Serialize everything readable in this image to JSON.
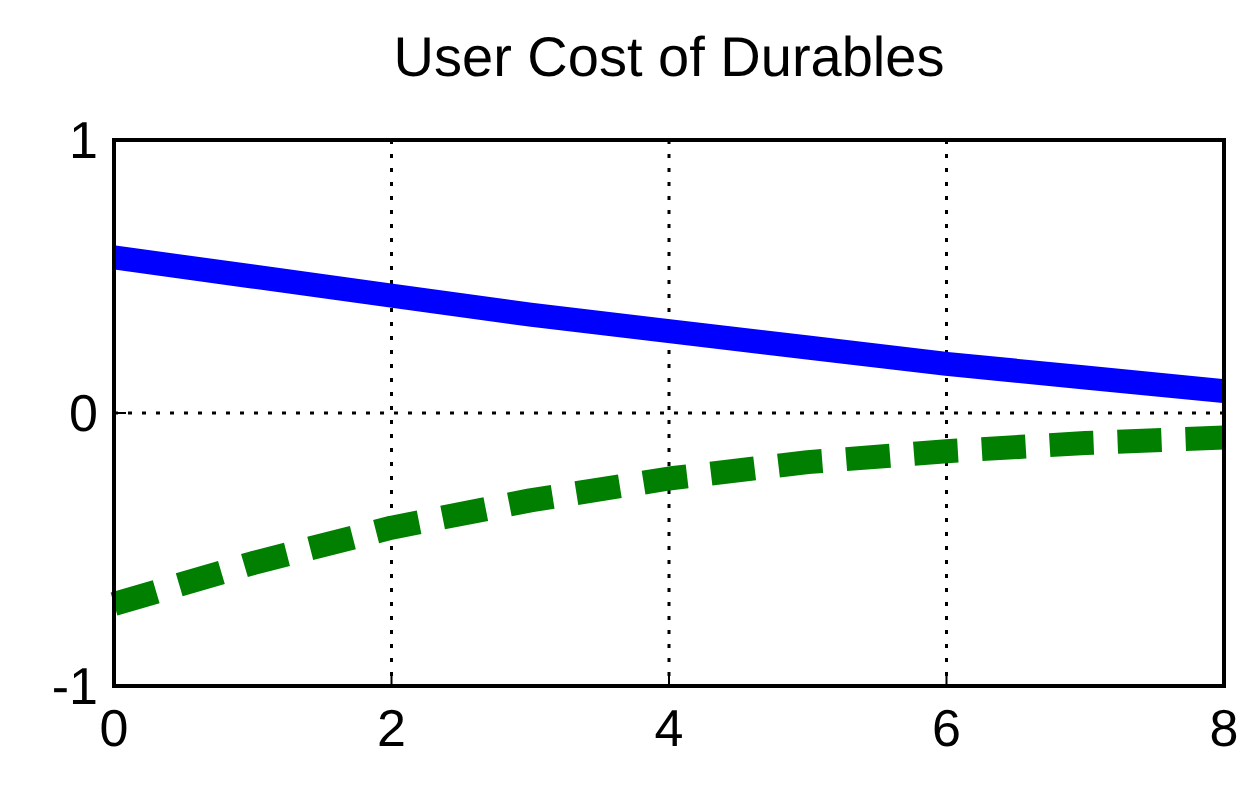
{
  "chart_data": {
    "type": "line",
    "title": "User Cost of Durables",
    "x": [
      0,
      1,
      2,
      3,
      4,
      5,
      6,
      7,
      8
    ],
    "series": [
      {
        "color": "#0000ff",
        "values": [
          0.57,
          0.5,
          0.43,
          0.36,
          0.3,
          0.24,
          0.18,
          0.13,
          0.08
        ],
        "line_style": "solid"
      },
      {
        "color": "#007f00",
        "values": [
          -0.7,
          -0.55,
          -0.42,
          -0.32,
          -0.24,
          -0.18,
          -0.14,
          -0.11,
          -0.09
        ],
        "line_style": "dashed"
      }
    ],
    "xlim": [
      0,
      8
    ],
    "xticks": [
      0,
      2,
      4,
      6,
      8
    ],
    "ylim": [
      -1,
      1
    ],
    "yticks": [
      -1,
      0,
      1
    ],
    "grid": true,
    "marker": "none"
  }
}
